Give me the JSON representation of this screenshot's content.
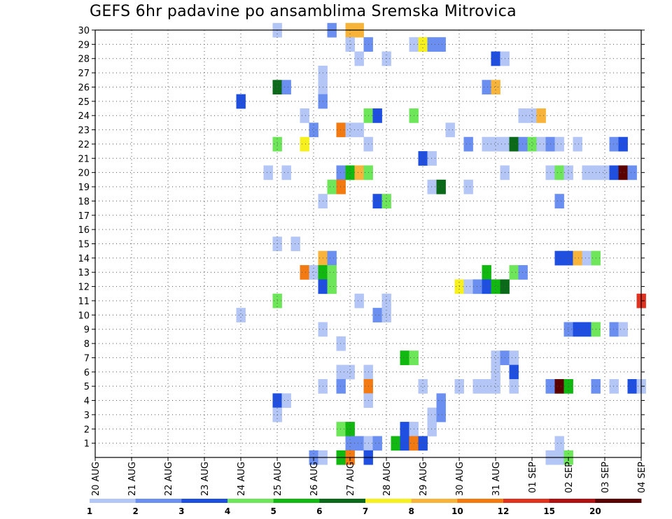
{
  "chart_data": {
    "type": "heatmap",
    "title": "GEFS 6hr padavine po ansamblima Sremska Mitrovica",
    "x_ticks": [
      "20 AUG",
      "21 AUG",
      "22 AUG",
      "23 AUG",
      "24 AUG",
      "25 AUG",
      "26 AUG",
      "27 AUG",
      "28 AUG",
      "29 AUG",
      "30 AUG",
      "31 AUG",
      "01 SEP",
      "02 SEP",
      "03 SEP",
      "04 SEP"
    ],
    "y_ticks": [
      "1",
      "2",
      "3",
      "4",
      "5",
      "6",
      "7",
      "8",
      "9",
      "10",
      "11",
      "12",
      "13",
      "14",
      "15",
      "16",
      "17",
      "18",
      "19",
      "20",
      "21",
      "22",
      "23",
      "24",
      "25",
      "26",
      "27",
      "28",
      "29",
      "30"
    ],
    "x_range_days": [
      0,
      15
    ],
    "y_range": [
      0,
      30
    ],
    "grid": true,
    "colorbar": {
      "bounds": [
        1,
        2,
        3,
        4,
        5,
        6,
        7,
        8,
        10,
        12,
        15,
        20
      ],
      "labels": [
        "1",
        "2",
        "3",
        "4",
        "5",
        "6",
        "7",
        "8",
        "10",
        "12",
        "15",
        "20"
      ],
      "colors": [
        "#b3c6f5",
        "#6a8ff0",
        "#1f4fe0",
        "#6ee65a",
        "#10b810",
        "#0a6a1a",
        "#f6f01e",
        "#f8b43a",
        "#f27a10",
        "#e0321e",
        "#b01010",
        "#5a0000"
      ]
    },
    "cells": [
      [
        5,
        30,
        0
      ],
      [
        6.5,
        30,
        1
      ],
      [
        7,
        30,
        7
      ],
      [
        7.25,
        30,
        7
      ],
      [
        7,
        29,
        0
      ],
      [
        7.5,
        29,
        1
      ],
      [
        8.75,
        29,
        0
      ],
      [
        9,
        29,
        6
      ],
      [
        9.25,
        29,
        1
      ],
      [
        9.5,
        29,
        1
      ],
      [
        7.25,
        28,
        0
      ],
      [
        8,
        28,
        0
      ],
      [
        11,
        28,
        2
      ],
      [
        11.25,
        28,
        0
      ],
      [
        6.25,
        27,
        0
      ],
      [
        6.25,
        26,
        0
      ],
      [
        5,
        26,
        5
      ],
      [
        5.25,
        26,
        1
      ],
      [
        10.75,
        26,
        1
      ],
      [
        11,
        26,
        7
      ],
      [
        4,
        25,
        2
      ],
      [
        6.25,
        25,
        1
      ],
      [
        5.75,
        24,
        0
      ],
      [
        7.5,
        24,
        3
      ],
      [
        7.75,
        24,
        2
      ],
      [
        8.75,
        24,
        3
      ],
      [
        11.75,
        24,
        0
      ],
      [
        12,
        24,
        0
      ],
      [
        12.25,
        24,
        7
      ],
      [
        6,
        23,
        1
      ],
      [
        6.75,
        23,
        8
      ],
      [
        7,
        23,
        0
      ],
      [
        7.25,
        23,
        0
      ],
      [
        9.75,
        23,
        0
      ],
      [
        5,
        22,
        3
      ],
      [
        5.75,
        22,
        6
      ],
      [
        7.5,
        22,
        0
      ],
      [
        10.25,
        22,
        1
      ],
      [
        10.75,
        22,
        0
      ],
      [
        11,
        22,
        0
      ],
      [
        11.25,
        22,
        0
      ],
      [
        11.5,
        22,
        5
      ],
      [
        11.75,
        22,
        1
      ],
      [
        12,
        22,
        3
      ],
      [
        12.25,
        22,
        0
      ],
      [
        12.5,
        22,
        1
      ],
      [
        12.75,
        22,
        0
      ],
      [
        13.25,
        22,
        0
      ],
      [
        14.25,
        22,
        1
      ],
      [
        14.5,
        22,
        2
      ],
      [
        9,
        21,
        2
      ],
      [
        9.25,
        21,
        0
      ],
      [
        4.75,
        20,
        0
      ],
      [
        5.25,
        20,
        0
      ],
      [
        6.75,
        20,
        1
      ],
      [
        7,
        20,
        4
      ],
      [
        7.25,
        20,
        7
      ],
      [
        7.5,
        20,
        3
      ],
      [
        11.25,
        20,
        0
      ],
      [
        12.5,
        20,
        0
      ],
      [
        12.75,
        20,
        3
      ],
      [
        13,
        20,
        0
      ],
      [
        13.5,
        20,
        0
      ],
      [
        13.75,
        20,
        0
      ],
      [
        14,
        20,
        0
      ],
      [
        14.25,
        20,
        2
      ],
      [
        14.5,
        20,
        11
      ],
      [
        14.75,
        20,
        1
      ],
      [
        6.5,
        19,
        3
      ],
      [
        6.75,
        19,
        8
      ],
      [
        9.25,
        19,
        0
      ],
      [
        9.5,
        19,
        5
      ],
      [
        10.25,
        19,
        0
      ],
      [
        6.25,
        18,
        0
      ],
      [
        7.75,
        18,
        2
      ],
      [
        8,
        18,
        3
      ],
      [
        12.75,
        18,
        1
      ],
      [
        5,
        15,
        0
      ],
      [
        5.5,
        15,
        0
      ],
      [
        6.25,
        14,
        7
      ],
      [
        6.5,
        14,
        1
      ],
      [
        12.75,
        14,
        2
      ],
      [
        13,
        14,
        2
      ],
      [
        13.25,
        14,
        7
      ],
      [
        13.5,
        14,
        0
      ],
      [
        13.75,
        14,
        3
      ],
      [
        5.75,
        13,
        8
      ],
      [
        6,
        13,
        0
      ],
      [
        6.25,
        13,
        4
      ],
      [
        6.5,
        13,
        3
      ],
      [
        10.75,
        13,
        4
      ],
      [
        11.5,
        13,
        3
      ],
      [
        11.75,
        13,
        1
      ],
      [
        6.25,
        12,
        2
      ],
      [
        6.5,
        12,
        3
      ],
      [
        10,
        12,
        6
      ],
      [
        10.25,
        12,
        0
      ],
      [
        10.5,
        12,
        1
      ],
      [
        10.75,
        12,
        2
      ],
      [
        11,
        12,
        4
      ],
      [
        11.25,
        12,
        5
      ],
      [
        5,
        11,
        3
      ],
      [
        7.25,
        11,
        0
      ],
      [
        8,
        11,
        0
      ],
      [
        15,
        11,
        9
      ],
      [
        4,
        10,
        0
      ],
      [
        7.75,
        10,
        1
      ],
      [
        8,
        10,
        0
      ],
      [
        6.25,
        9,
        0
      ],
      [
        13,
        9,
        1
      ],
      [
        13.25,
        9,
        2
      ],
      [
        13.5,
        9,
        2
      ],
      [
        13.75,
        9,
        3
      ],
      [
        14.25,
        9,
        1
      ],
      [
        14.5,
        9,
        0
      ],
      [
        6.75,
        8,
        0
      ],
      [
        8.5,
        7,
        4
      ],
      [
        8.75,
        7,
        3
      ],
      [
        11,
        7,
        0
      ],
      [
        11.25,
        7,
        1
      ],
      [
        11.5,
        7,
        0
      ],
      [
        6.75,
        6,
        0
      ],
      [
        7,
        6,
        0
      ],
      [
        7.5,
        6,
        0
      ],
      [
        11,
        6,
        0
      ],
      [
        11.5,
        6,
        2
      ],
      [
        6.25,
        5,
        0
      ],
      [
        6.75,
        5,
        1
      ],
      [
        7.5,
        5,
        8
      ],
      [
        9,
        5,
        0
      ],
      [
        10,
        5,
        0
      ],
      [
        10.5,
        5,
        0
      ],
      [
        10.75,
        5,
        0
      ],
      [
        11,
        5,
        0
      ],
      [
        11.5,
        5,
        0
      ],
      [
        12.5,
        5,
        1
      ],
      [
        12.75,
        5,
        11
      ],
      [
        13,
        5,
        4
      ],
      [
        13.75,
        5,
        1
      ],
      [
        14.25,
        5,
        0
      ],
      [
        14.75,
        5,
        2
      ],
      [
        15,
        5,
        0
      ],
      [
        5,
        4,
        2
      ],
      [
        5.25,
        4,
        0
      ],
      [
        7.5,
        4,
        0
      ],
      [
        9.5,
        4,
        1
      ],
      [
        5,
        3,
        0
      ],
      [
        9.25,
        3,
        0
      ],
      [
        9.5,
        3,
        1
      ],
      [
        6.75,
        2,
        3
      ],
      [
        7,
        2,
        4
      ],
      [
        8.5,
        2,
        2
      ],
      [
        8.75,
        2,
        0
      ],
      [
        9.25,
        2,
        0
      ],
      [
        7,
        1,
        1
      ],
      [
        7.25,
        1,
        1
      ],
      [
        7.5,
        1,
        0
      ],
      [
        7.75,
        1,
        1
      ],
      [
        8.25,
        1,
        4
      ],
      [
        8.5,
        1,
        2
      ],
      [
        8.75,
        1,
        8
      ],
      [
        9,
        1,
        2
      ],
      [
        12.75,
        1,
        0
      ],
      [
        6,
        0,
        1
      ],
      [
        6.25,
        0,
        0
      ],
      [
        6.75,
        0,
        4
      ],
      [
        7,
        0,
        8
      ],
      [
        7.5,
        0,
        2
      ],
      [
        12.5,
        0,
        0
      ],
      [
        12.75,
        0,
        0
      ],
      [
        13,
        0,
        3
      ]
    ]
  }
}
